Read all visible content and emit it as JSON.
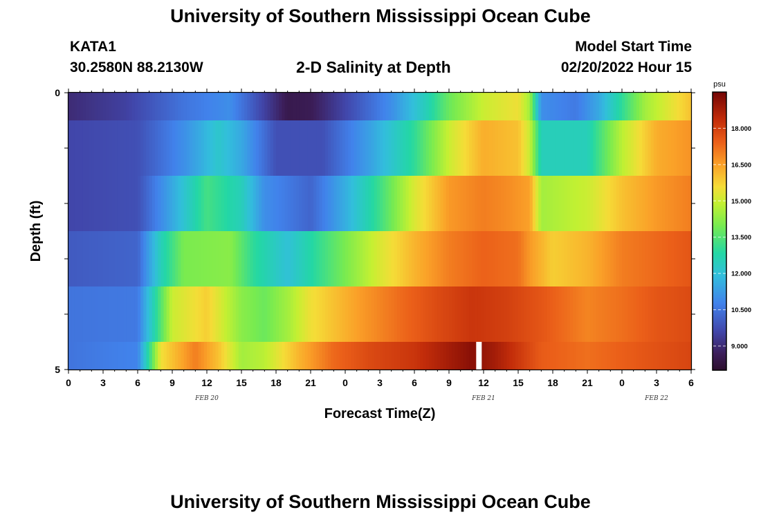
{
  "page": {
    "title": "University of Southern Mississippi Ocean Cube",
    "footer_title": "University of Southern Mississippi Ocean Cube",
    "station": "KATA1",
    "coords": "30.2580N  88.2130W",
    "center_label": "2-D Salinity at Depth",
    "model_label": "Model Start Time",
    "model_time": "02/20/2022 Hour 15"
  },
  "chart_data": {
    "type": "heatmap",
    "title": "2-D Salinity at Depth",
    "xlabel": "Forecast Time(Z)",
    "ylabel": "Depth (ft)",
    "x_ticks": [
      "0",
      "3",
      "6",
      "9",
      "12",
      "15",
      "18",
      "21",
      "0",
      "3",
      "6",
      "9",
      "12",
      "15",
      "18",
      "21",
      "0",
      "3",
      "6"
    ],
    "date_labels": [
      {
        "label": "FEB 20",
        "hour_index": 12
      },
      {
        "label": "FEB 21",
        "hour_index": 36
      },
      {
        "label": "FEB 22",
        "hour_index": 51
      }
    ],
    "y_tick_labels": [
      "0",
      "5"
    ],
    "y_range": [
      0,
      5
    ],
    "hours": 54,
    "colorbar": {
      "unit": "psu",
      "ticks": [
        "18.000",
        "16.500",
        "15.000",
        "13.500",
        "12.000",
        "10.500",
        "9.000"
      ],
      "tick_values": [
        18.0,
        16.5,
        15.0,
        13.5,
        12.0,
        10.5,
        9.0
      ],
      "range": [
        8.0,
        19.5
      ]
    },
    "layers": [
      {
        "depth": "0-0.5",
        "keys": [
          [
            0,
            9.0
          ],
          [
            5,
            9.5
          ],
          [
            10,
            10.5
          ],
          [
            14,
            11.0
          ],
          [
            16,
            10.0
          ],
          [
            19,
            8.5
          ],
          [
            21,
            8.6
          ],
          [
            24,
            9.6
          ],
          [
            28,
            11.0
          ],
          [
            31,
            12.5
          ],
          [
            33,
            13.8
          ],
          [
            36,
            15.0
          ],
          [
            39,
            15.5
          ],
          [
            40,
            14.5
          ],
          [
            41,
            11.0
          ],
          [
            44,
            10.6
          ],
          [
            46,
            11.5
          ],
          [
            48,
            13.0
          ],
          [
            50,
            14.5
          ],
          [
            54,
            16.0
          ]
        ]
      },
      {
        "depth": "0.5-1.5",
        "keys": [
          [
            0,
            9.6
          ],
          [
            6,
            9.8
          ],
          [
            10,
            11.0
          ],
          [
            13,
            12.2
          ],
          [
            15,
            11.5
          ],
          [
            18,
            9.8
          ],
          [
            22,
            9.8
          ],
          [
            26,
            11.3
          ],
          [
            30,
            13.0
          ],
          [
            33,
            15.0
          ],
          [
            36,
            16.3
          ],
          [
            39,
            16.0
          ],
          [
            40,
            15.0
          ],
          [
            41,
            12.5
          ],
          [
            45,
            12.5
          ],
          [
            48,
            14.8
          ],
          [
            51,
            16.3
          ],
          [
            54,
            16.7
          ]
        ]
      },
      {
        "depth": "1.5-2.5",
        "keys": [
          [
            0,
            9.6
          ],
          [
            6,
            9.8
          ],
          [
            9,
            11.5
          ],
          [
            12,
            13.3
          ],
          [
            15,
            12.5
          ],
          [
            17,
            11.0
          ],
          [
            21,
            10.2
          ],
          [
            24,
            11.6
          ],
          [
            27,
            13.2
          ],
          [
            30,
            15.2
          ],
          [
            33,
            16.6
          ],
          [
            36,
            17.0
          ],
          [
            38,
            16.8
          ],
          [
            40,
            16.5
          ],
          [
            41,
            14.5
          ],
          [
            45,
            15.0
          ],
          [
            48,
            16.0
          ],
          [
            51,
            16.6
          ],
          [
            54,
            17.0
          ]
        ]
      },
      {
        "depth": "2.5-3.5",
        "keys": [
          [
            0,
            10.0
          ],
          [
            6,
            10.2
          ],
          [
            8,
            12.5
          ],
          [
            10,
            14.0
          ],
          [
            14,
            14.2
          ],
          [
            16,
            13.0
          ],
          [
            19,
            12.0
          ],
          [
            21,
            12.8
          ],
          [
            24,
            14.0
          ],
          [
            27,
            15.2
          ],
          [
            30,
            16.2
          ],
          [
            33,
            17.0
          ],
          [
            36,
            17.4
          ],
          [
            39,
            17.2
          ],
          [
            40,
            16.6
          ],
          [
            42,
            15.8
          ],
          [
            45,
            16.2
          ],
          [
            48,
            17.0
          ],
          [
            54,
            17.6
          ]
        ]
      },
      {
        "depth": "3.5-4.5",
        "keys": [
          [
            0,
            10.5
          ],
          [
            6,
            10.6
          ],
          [
            8,
            13.5
          ],
          [
            9,
            15.0
          ],
          [
            12,
            15.8
          ],
          [
            15,
            14.2
          ],
          [
            17,
            13.8
          ],
          [
            19,
            14.5
          ],
          [
            21,
            15.5
          ],
          [
            25,
            16.5
          ],
          [
            29,
            17.3
          ],
          [
            32,
            17.8
          ],
          [
            35,
            18.2
          ],
          [
            38,
            18.0
          ],
          [
            41,
            17.6
          ],
          [
            45,
            16.9
          ],
          [
            48,
            17.2
          ],
          [
            51,
            17.6
          ],
          [
            54,
            17.8
          ]
        ]
      },
      {
        "depth": "4.5-5",
        "keys": [
          [
            0,
            10.5
          ],
          [
            6,
            10.8
          ],
          [
            7,
            13.0
          ],
          [
            8,
            15.5
          ],
          [
            10,
            16.5
          ],
          [
            11,
            17.0
          ],
          [
            13,
            16.0
          ],
          [
            15,
            14.5
          ],
          [
            17,
            14.8
          ],
          [
            20,
            16.2
          ],
          [
            23,
            17.3
          ],
          [
            26,
            17.8
          ],
          [
            30,
            18.2
          ],
          [
            33,
            18.8
          ],
          [
            35,
            19.2
          ],
          [
            37,
            18.8
          ],
          [
            41,
            17.5
          ],
          [
            45,
            17.2
          ],
          [
            50,
            17.6
          ],
          [
            54,
            17.9
          ]
        ]
      }
    ],
    "layer_bounds": [
      0,
      0.5,
      1.5,
      2.5,
      3.5,
      4.5,
      5
    ],
    "gap_hour": 35.6
  }
}
